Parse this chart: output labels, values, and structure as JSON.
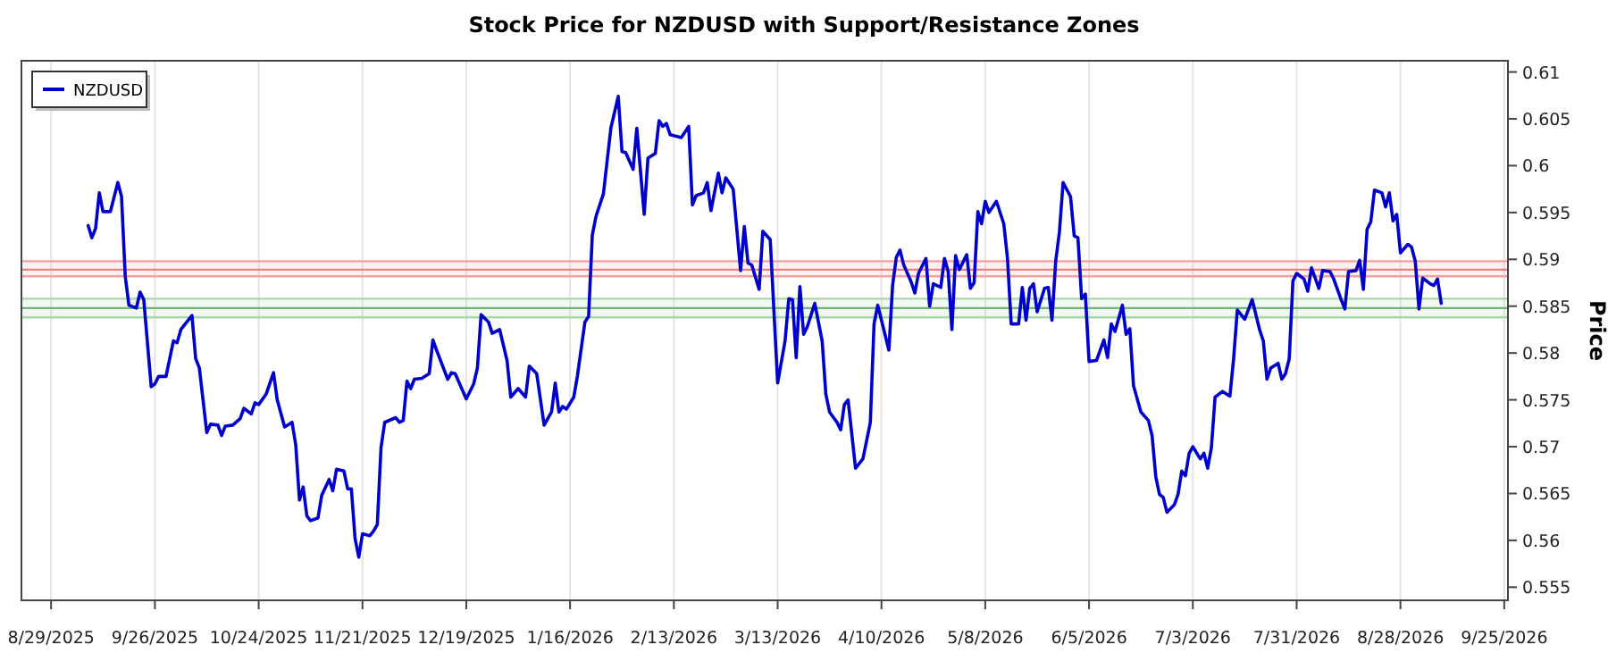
{
  "chart_data": {
    "type": "line",
    "title": "Stock Price for NZDUSD with Support/Resistance Zones",
    "ylabel": "Price",
    "xlim": [
      "2025-08-21",
      "2026-09-26"
    ],
    "ylim": [
      0.5536,
      0.6112
    ],
    "xticks": [
      {
        "value": "2025-08-29",
        "label": "8/29/2025"
      },
      {
        "value": "2025-09-26",
        "label": "9/26/2025"
      },
      {
        "value": "2025-10-24",
        "label": "10/24/2025"
      },
      {
        "value": "2025-11-21",
        "label": "11/21/2025"
      },
      {
        "value": "2025-12-19",
        "label": "12/19/2025"
      },
      {
        "value": "2026-01-16",
        "label": "1/16/2026"
      },
      {
        "value": "2026-02-13",
        "label": "2/13/2026"
      },
      {
        "value": "2026-03-13",
        "label": "3/13/2026"
      },
      {
        "value": "2026-04-10",
        "label": "4/10/2026"
      },
      {
        "value": "2026-05-08",
        "label": "5/8/2026"
      },
      {
        "value": "2026-06-05",
        "label": "6/5/2026"
      },
      {
        "value": "2026-07-03",
        "label": "7/3/2026"
      },
      {
        "value": "2026-07-31",
        "label": "7/31/2026"
      },
      {
        "value": "2026-08-28",
        "label": "8/28/2026"
      },
      {
        "value": "2026-09-25",
        "label": "9/25/2026"
      }
    ],
    "yticks": [
      0.555,
      0.56,
      0.565,
      0.57,
      0.575,
      0.58,
      0.585,
      0.59,
      0.595,
      0.6,
      0.605,
      0.61
    ],
    "grid": "x",
    "legend": "top left",
    "line_style": "solid",
    "bands": [
      {
        "axis": "y",
        "from": 0.5882,
        "to": 0.5898,
        "color": "#f4a0a0"
      },
      {
        "axis": "y",
        "from": 0.5838,
        "to": 0.5858,
        "color": "#a8d8a8"
      }
    ],
    "ref_lines": [
      {
        "axis": "y",
        "value": 0.5898,
        "color": "#f4a0a0"
      },
      {
        "axis": "y",
        "value": 0.5882,
        "color": "#f4a0a0"
      },
      {
        "axis": "y",
        "value": 0.5858,
        "color": "#a8d8a8"
      },
      {
        "axis": "y",
        "value": 0.5838,
        "color": "#a8d8a8"
      },
      {
        "axis": "y",
        "value": 0.5889,
        "color": "#f08080"
      },
      {
        "axis": "y",
        "value": 0.5848,
        "color": "#6cb86c"
      }
    ],
    "x": [
      "2025-09-08",
      "2025-09-09",
      "2025-09-10",
      "2025-09-11",
      "2025-09-12",
      "2025-09-14",
      "2025-09-16",
      "2025-09-17",
      "2025-09-18",
      "2025-09-19",
      "2025-09-21",
      "2025-09-22",
      "2025-09-23",
      "2025-09-25",
      "2025-09-26",
      "2025-09-27",
      "2025-09-29",
      "2025-10-01",
      "2025-10-02",
      "2025-10-03",
      "2025-10-06",
      "2025-10-07",
      "2025-10-08",
      "2025-10-10",
      "2025-10-11",
      "2025-10-13",
      "2025-10-14",
      "2025-10-15",
      "2025-10-17",
      "2025-10-19",
      "2025-10-20",
      "2025-10-22",
      "2025-10-23",
      "2025-10-24",
      "2025-10-26",
      "2025-10-28",
      "2025-10-29",
      "2025-10-31",
      "2025-11-02",
      "2025-11-03",
      "2025-11-04",
      "2025-11-05",
      "2025-11-06",
      "2025-11-07",
      "2025-11-09",
      "2025-11-10",
      "2025-11-12",
      "2025-11-13",
      "2025-11-14",
      "2025-11-16",
      "2025-11-17",
      "2025-11-18",
      "2025-11-19",
      "2025-11-20",
      "2025-11-21",
      "2025-11-23",
      "2025-11-24",
      "2025-11-25",
      "2025-11-26",
      "2025-11-27",
      "2025-11-30",
      "2025-12-01",
      "2025-12-02",
      "2025-12-03",
      "2025-12-04",
      "2025-12-05",
      "2025-12-07",
      "2025-12-09",
      "2025-12-10",
      "2025-12-11",
      "2025-12-14",
      "2025-12-15",
      "2025-12-16",
      "2025-12-19",
      "2025-12-21",
      "2025-12-22",
      "2025-12-23",
      "2025-12-25",
      "2025-12-26",
      "2025-12-28",
      "2025-12-30",
      "2025-12-31",
      "2026-01-02",
      "2026-01-04",
      "2026-01-05",
      "2026-01-07",
      "2026-01-09",
      "2026-01-11",
      "2026-01-12",
      "2026-01-13",
      "2026-01-14",
      "2026-01-15",
      "2026-01-17",
      "2026-01-18",
      "2026-01-20",
      "2026-01-21",
      "2026-01-22",
      "2026-01-23",
      "2026-01-25",
      "2026-01-27",
      "2026-01-29",
      "2026-01-30",
      "2026-01-31",
      "2026-02-02",
      "2026-02-03",
      "2026-02-05",
      "2026-02-06",
      "2026-02-08",
      "2026-02-09",
      "2026-02-10",
      "2026-02-11",
      "2026-02-12",
      "2026-02-15",
      "2026-02-17",
      "2026-02-18",
      "2026-02-19",
      "2026-02-21",
      "2026-02-22",
      "2026-02-23",
      "2026-02-25",
      "2026-02-26",
      "2026-02-27",
      "2026-03-01",
      "2026-03-03",
      "2026-03-04",
      "2026-03-05",
      "2026-03-06",
      "2026-03-08",
      "2026-03-09",
      "2026-03-11",
      "2026-03-13",
      "2026-03-15",
      "2026-03-16",
      "2026-03-17",
      "2026-03-18",
      "2026-03-19",
      "2026-03-20",
      "2026-03-21",
      "2026-03-23",
      "2026-03-25",
      "2026-03-26",
      "2026-03-27",
      "2026-03-29",
      "2026-03-30",
      "2026-03-31",
      "2026-04-01",
      "2026-04-03",
      "2026-04-05",
      "2026-04-07",
      "2026-04-08",
      "2026-04-09",
      "2026-04-12",
      "2026-04-13",
      "2026-04-14",
      "2026-04-15",
      "2026-04-16",
      "2026-04-18",
      "2026-04-19",
      "2026-04-20",
      "2026-04-22",
      "2026-04-23",
      "2026-04-24",
      "2026-04-26",
      "2026-04-27",
      "2026-04-28",
      "2026-04-29",
      "2026-04-30",
      "2026-05-01",
      "2026-05-03",
      "2026-05-04",
      "2026-05-05",
      "2026-05-06",
      "2026-05-07",
      "2026-05-08",
      "2026-05-09",
      "2026-05-11",
      "2026-05-13",
      "2026-05-14",
      "2026-05-15",
      "2026-05-17",
      "2026-05-18",
      "2026-05-19",
      "2026-05-20",
      "2026-05-21",
      "2026-05-22",
      "2026-05-24",
      "2026-05-25",
      "2026-05-26",
      "2026-05-27",
      "2026-05-28",
      "2026-05-29",
      "2026-05-31",
      "2026-06-01",
      "2026-06-02",
      "2026-06-03",
      "2026-06-04",
      "2026-06-05",
      "2026-06-07",
      "2026-06-09",
      "2026-06-10",
      "2026-06-11",
      "2026-06-12",
      "2026-06-14",
      "2026-06-15",
      "2026-06-16",
      "2026-06-17",
      "2026-06-19",
      "2026-06-21",
      "2026-06-22",
      "2026-06-23",
      "2026-06-24",
      "2026-06-25",
      "2026-06-26",
      "2026-06-28",
      "2026-06-29",
      "2026-06-30",
      "2026-07-01",
      "2026-07-02",
      "2026-07-03",
      "2026-07-05",
      "2026-07-06",
      "2026-07-07",
      "2026-07-08",
      "2026-07-09",
      "2026-07-11",
      "2026-07-13",
      "2026-07-14",
      "2026-07-15",
      "2026-07-17",
      "2026-07-19",
      "2026-07-21",
      "2026-07-22",
      "2026-07-23",
      "2026-07-24",
      "2026-07-26",
      "2026-07-27",
      "2026-07-28",
      "2026-07-29",
      "2026-07-30",
      "2026-07-31",
      "2026-08-02",
      "2026-08-03",
      "2026-08-04",
      "2026-08-06",
      "2026-08-07",
      "2026-08-09",
      "2026-08-10",
      "2026-08-12",
      "2026-08-13",
      "2026-08-14",
      "2026-08-16",
      "2026-08-17",
      "2026-08-18",
      "2026-08-19",
      "2026-08-20",
      "2026-08-21",
      "2026-08-23",
      "2026-08-24",
      "2026-08-25",
      "2026-08-26",
      "2026-08-27",
      "2026-08-28",
      "2026-08-30",
      "2026-08-31",
      "2026-09-01",
      "2026-09-02",
      "2026-09-03",
      "2026-09-05",
      "2026-09-06",
      "2026-09-07",
      "2026-09-08"
    ],
    "series": [
      {
        "name": "NZDUSD",
        "color": "#0000cd",
        "values": [
          0.5936,
          0.5923,
          0.5933,
          0.5971,
          0.5951,
          0.5951,
          0.5982,
          0.5967,
          0.5882,
          0.5851,
          0.5848,
          0.5865,
          0.5857,
          0.5764,
          0.5767,
          0.5775,
          0.5775,
          0.5813,
          0.5811,
          0.5825,
          0.584,
          0.5794,
          0.5784,
          0.5715,
          0.5724,
          0.5723,
          0.5712,
          0.5722,
          0.5723,
          0.573,
          0.5741,
          0.5735,
          0.5747,
          0.5745,
          0.5756,
          0.5779,
          0.575,
          0.5721,
          0.5726,
          0.5702,
          0.5643,
          0.5657,
          0.5626,
          0.5621,
          0.5624,
          0.5648,
          0.5665,
          0.5653,
          0.5676,
          0.5674,
          0.5655,
          0.5655,
          0.5602,
          0.5582,
          0.5607,
          0.5605,
          0.561,
          0.5617,
          0.5699,
          0.5726,
          0.5731,
          0.5726,
          0.5728,
          0.577,
          0.5762,
          0.5772,
          0.5773,
          0.5778,
          0.5814,
          0.5803,
          0.5772,
          0.5779,
          0.5778,
          0.5751,
          0.5767,
          0.5784,
          0.5841,
          0.5833,
          0.5821,
          0.5825,
          0.5792,
          0.5753,
          0.5762,
          0.5753,
          0.5786,
          0.5778,
          0.5723,
          0.5737,
          0.5768,
          0.5737,
          0.5743,
          0.574,
          0.5753,
          0.5776,
          0.5833,
          0.5839,
          0.5926,
          0.5946,
          0.597,
          0.604,
          0.6074,
          0.6015,
          0.6014,
          0.5996,
          0.604,
          0.5948,
          0.6008,
          0.6013,
          0.6048,
          0.6042,
          0.6045,
          0.6033,
          0.603,
          0.6042,
          0.5958,
          0.5968,
          0.5971,
          0.5982,
          0.5952,
          0.5992,
          0.5971,
          0.5987,
          0.5975,
          0.5888,
          0.5935,
          0.5896,
          0.5894,
          0.5868,
          0.593,
          0.5921,
          0.5768,
          0.5813,
          0.5858,
          0.5857,
          0.5795,
          0.5871,
          0.582,
          0.5828,
          0.5853,
          0.5813,
          0.5756,
          0.5737,
          0.5726,
          0.5718,
          0.5745,
          0.575,
          0.5677,
          0.5687,
          0.5726,
          0.5831,
          0.5851,
          0.5803,
          0.5872,
          0.5902,
          0.591,
          0.5894,
          0.5876,
          0.5864,
          0.5885,
          0.5901,
          0.585,
          0.5874,
          0.587,
          0.5901,
          0.5887,
          0.5825,
          0.5904,
          0.5889,
          0.5905,
          0.5869,
          0.5875,
          0.5951,
          0.5938,
          0.5962,
          0.595,
          0.5962,
          0.5938,
          0.5901,
          0.5831,
          0.5831,
          0.587,
          0.5835,
          0.5869,
          0.5874,
          0.5844,
          0.5869,
          0.587,
          0.5835,
          0.5898,
          0.5929,
          0.5982,
          0.5967,
          0.5925,
          0.5923,
          0.5858,
          0.5863,
          0.5791,
          0.5792,
          0.5814,
          0.5795,
          0.5831,
          0.5823,
          0.5851,
          0.582,
          0.5826,
          0.5765,
          0.5737,
          0.5728,
          0.5712,
          0.5668,
          0.5649,
          0.5646,
          0.563,
          0.5638,
          0.5649,
          0.5674,
          0.5669,
          0.5693,
          0.57,
          0.5687,
          0.5693,
          0.5677,
          0.5699,
          0.5753,
          0.5759,
          0.5754,
          0.5794,
          0.5846,
          0.5836,
          0.5857,
          0.5825,
          0.5813,
          0.5772,
          0.5784,
          0.5789,
          0.5772,
          0.5778,
          0.5794,
          0.5877,
          0.5885,
          0.5879,
          0.5866,
          0.5891,
          0.5869,
          0.5888,
          0.5887,
          0.5879,
          0.5857,
          0.5847,
          0.5887,
          0.5888,
          0.5899,
          0.5868,
          0.5932,
          0.594,
          0.5974,
          0.5971,
          0.5956,
          0.5971,
          0.5941,
          0.5948,
          0.5907,
          0.5916,
          0.5913,
          0.5898,
          0.5847,
          0.588,
          0.5874,
          0.5872,
          0.5879,
          0.5853
        ]
      }
    ]
  }
}
